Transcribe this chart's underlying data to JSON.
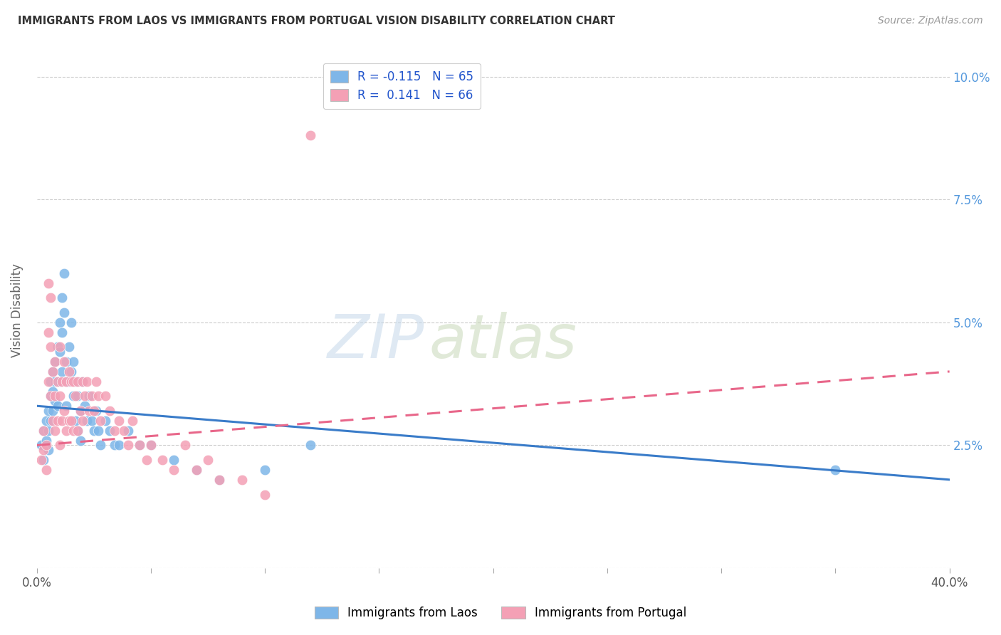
{
  "title": "IMMIGRANTS FROM LAOS VS IMMIGRANTS FROM PORTUGAL VISION DISABILITY CORRELATION CHART",
  "source": "Source: ZipAtlas.com",
  "ylabel": "Vision Disability",
  "y_ticks": [
    0.0,
    0.025,
    0.05,
    0.075,
    0.1
  ],
  "y_tick_labels": [
    "",
    "2.5%",
    "5.0%",
    "7.5%",
    "10.0%"
  ],
  "x_ticks": [
    0.0,
    0.05,
    0.1,
    0.15,
    0.2,
    0.25,
    0.3,
    0.35,
    0.4
  ],
  "x_tick_labels": [
    "0.0%",
    "",
    "",
    "",
    "",
    "",
    "",
    "",
    "40.0%"
  ],
  "laos_color": "#7eb6e8",
  "portugal_color": "#f4a0b5",
  "laos_line_color": "#3a7cc9",
  "portugal_line_color": "#e8678a",
  "laos_R": -0.115,
  "laos_N": 65,
  "portugal_R": 0.141,
  "portugal_N": 66,
  "background_color": "#ffffff",
  "legend_label_laos": "Immigrants from Laos",
  "legend_label_portugal": "Immigrants from Portugal",
  "watermark_text": "ZIPatlas",
  "watermark_zip_color": "#c8d8e8",
  "watermark_atlas_color": "#d8e4c8",
  "laos_x": [
    0.002,
    0.003,
    0.003,
    0.004,
    0.004,
    0.005,
    0.005,
    0.005,
    0.006,
    0.006,
    0.006,
    0.007,
    0.007,
    0.007,
    0.008,
    0.008,
    0.008,
    0.009,
    0.009,
    0.009,
    0.01,
    0.01,
    0.01,
    0.011,
    0.011,
    0.011,
    0.012,
    0.012,
    0.013,
    0.013,
    0.013,
    0.014,
    0.014,
    0.015,
    0.015,
    0.016,
    0.016,
    0.017,
    0.017,
    0.018,
    0.018,
    0.019,
    0.019,
    0.02,
    0.021,
    0.022,
    0.023,
    0.024,
    0.025,
    0.026,
    0.027,
    0.028,
    0.03,
    0.032,
    0.034,
    0.036,
    0.04,
    0.045,
    0.05,
    0.06,
    0.07,
    0.08,
    0.1,
    0.12,
    0.35
  ],
  "laos_y": [
    0.025,
    0.022,
    0.028,
    0.03,
    0.026,
    0.032,
    0.028,
    0.024,
    0.038,
    0.035,
    0.03,
    0.04,
    0.036,
    0.032,
    0.042,
    0.038,
    0.034,
    0.045,
    0.038,
    0.033,
    0.05,
    0.044,
    0.038,
    0.055,
    0.048,
    0.04,
    0.06,
    0.052,
    0.042,
    0.038,
    0.033,
    0.045,
    0.038,
    0.05,
    0.04,
    0.042,
    0.035,
    0.038,
    0.03,
    0.035,
    0.028,
    0.032,
    0.026,
    0.038,
    0.033,
    0.03,
    0.035,
    0.03,
    0.028,
    0.032,
    0.028,
    0.025,
    0.03,
    0.028,
    0.025,
    0.025,
    0.028,
    0.025,
    0.025,
    0.022,
    0.02,
    0.018,
    0.02,
    0.025,
    0.02
  ],
  "portugal_x": [
    0.002,
    0.003,
    0.003,
    0.004,
    0.004,
    0.005,
    0.005,
    0.005,
    0.006,
    0.006,
    0.006,
    0.007,
    0.007,
    0.008,
    0.008,
    0.008,
    0.009,
    0.009,
    0.01,
    0.01,
    0.01,
    0.011,
    0.011,
    0.012,
    0.012,
    0.013,
    0.013,
    0.014,
    0.014,
    0.015,
    0.015,
    0.016,
    0.016,
    0.017,
    0.018,
    0.018,
    0.019,
    0.02,
    0.02,
    0.021,
    0.022,
    0.023,
    0.024,
    0.025,
    0.026,
    0.027,
    0.028,
    0.03,
    0.032,
    0.034,
    0.036,
    0.038,
    0.04,
    0.042,
    0.045,
    0.048,
    0.05,
    0.055,
    0.06,
    0.065,
    0.07,
    0.075,
    0.08,
    0.09,
    0.1,
    0.12
  ],
  "portugal_y": [
    0.022,
    0.028,
    0.024,
    0.025,
    0.02,
    0.058,
    0.048,
    0.038,
    0.055,
    0.045,
    0.035,
    0.04,
    0.03,
    0.042,
    0.035,
    0.028,
    0.038,
    0.03,
    0.045,
    0.035,
    0.025,
    0.038,
    0.03,
    0.042,
    0.032,
    0.038,
    0.028,
    0.04,
    0.03,
    0.038,
    0.03,
    0.038,
    0.028,
    0.035,
    0.038,
    0.028,
    0.032,
    0.038,
    0.03,
    0.035,
    0.038,
    0.032,
    0.035,
    0.032,
    0.038,
    0.035,
    0.03,
    0.035,
    0.032,
    0.028,
    0.03,
    0.028,
    0.025,
    0.03,
    0.025,
    0.022,
    0.025,
    0.022,
    0.02,
    0.025,
    0.02,
    0.022,
    0.018,
    0.018,
    0.015,
    0.088
  ],
  "laos_line_x0": 0.0,
  "laos_line_x1": 0.4,
  "laos_line_y0": 0.033,
  "laos_line_y1": 0.018,
  "portugal_line_x0": 0.0,
  "portugal_line_x1": 0.4,
  "portugal_line_y0": 0.025,
  "portugal_line_y1": 0.04
}
